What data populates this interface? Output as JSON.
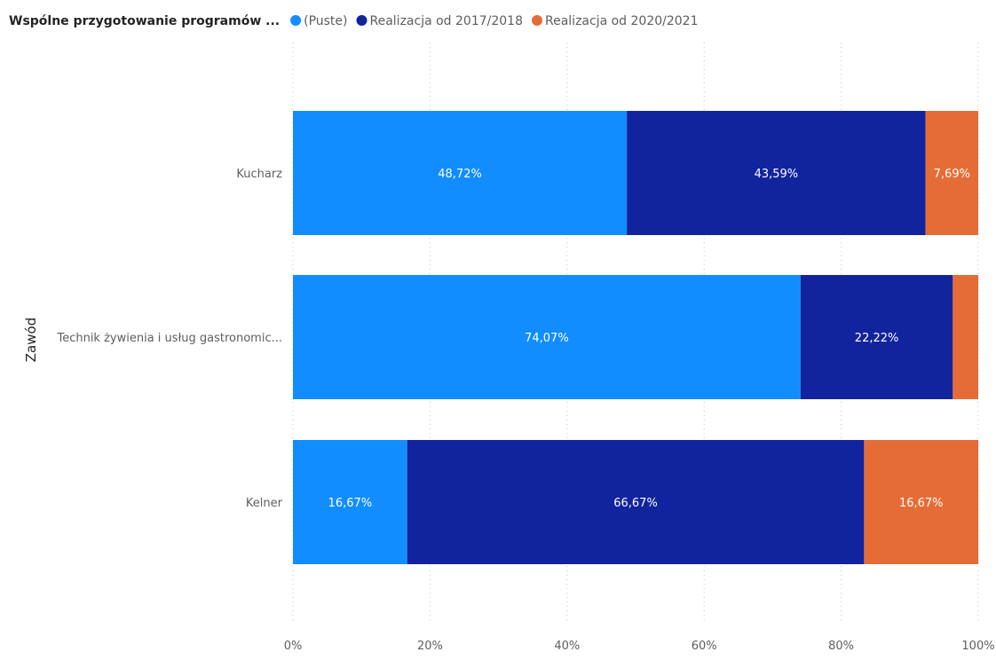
{
  "chart_data": {
    "type": "bar",
    "orientation": "horizontal",
    "stacked": "100%",
    "legend_title": "Wspólne przygotowanie programów ...",
    "ylabel": "Zawód",
    "xlabel": "",
    "categories": [
      "Kucharz",
      "Technik żywienia i usług gastronomic...",
      "Kelner"
    ],
    "series": [
      {
        "name": "(Puste)",
        "color": "#118DFF",
        "values": [
          48.72,
          74.07,
          16.67
        ],
        "labels": [
          "48,72%",
          "74,07%",
          "16,67%"
        ]
      },
      {
        "name": "Realizacja od 2017/2018",
        "color": "#12239E",
        "values": [
          43.59,
          22.22,
          66.67
        ],
        "labels": [
          "43,59%",
          "22,22%",
          "66,67%"
        ]
      },
      {
        "name": "Realizacja od 2020/2021",
        "color": "#E66C37",
        "values": [
          7.69,
          3.71,
          16.67
        ],
        "labels": [
          "7,69%",
          "",
          "16,67%"
        ]
      }
    ],
    "xlim": [
      0,
      100
    ],
    "xticks": [
      "0%",
      "20%",
      "40%",
      "60%",
      "80%",
      "100%"
    ],
    "grid": true,
    "legend_position": "top-left"
  }
}
